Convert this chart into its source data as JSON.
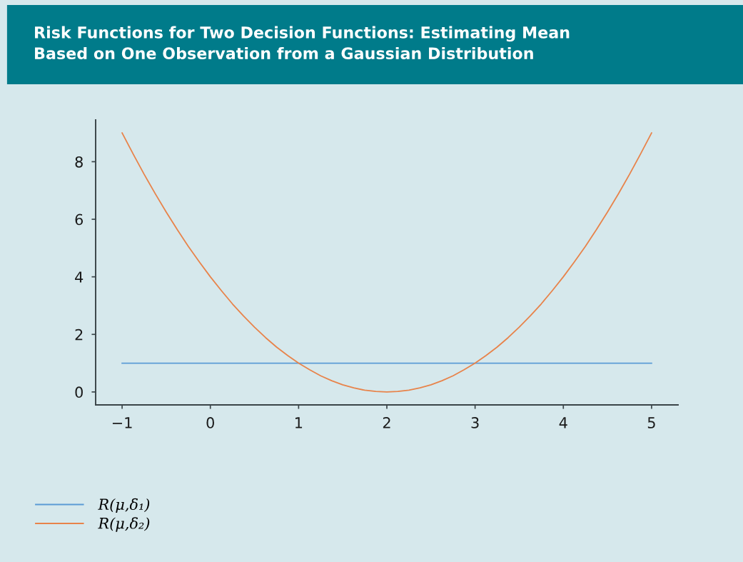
{
  "chart_data": {
    "type": "line",
    "title": "Risk Functions for Two Decision Functions: Estimating Mean\nBased on One Observation from a Gaussian Distribution",
    "series": [
      {
        "name": "R(μ,δ₁)",
        "color": "#5b9bd5",
        "x": [
          -1,
          5
        ],
        "values": [
          1,
          1
        ]
      },
      {
        "name": "R(μ,δ₂)",
        "color": "#e8834a",
        "x": [
          -1,
          -0.875,
          -0.75,
          -0.625,
          -0.5,
          -0.375,
          -0.25,
          -0.125,
          0,
          0.125,
          0.25,
          0.375,
          0.5,
          0.625,
          0.75,
          0.875,
          1,
          1.125,
          1.25,
          1.375,
          1.5,
          1.625,
          1.75,
          1.875,
          2,
          2.125,
          2.25,
          2.375,
          2.5,
          2.625,
          2.75,
          2.875,
          3,
          3.125,
          3.25,
          3.375,
          3.5,
          3.625,
          3.75,
          3.875,
          4,
          4.125,
          4.25,
          4.375,
          4.5,
          4.625,
          4.75,
          4.875,
          5
        ],
        "values": [
          9,
          8.27,
          7.56,
          6.89,
          6.25,
          5.64,
          5.06,
          4.52,
          4,
          3.52,
          3.06,
          2.64,
          2.25,
          1.89,
          1.56,
          1.27,
          1,
          0.77,
          0.56,
          0.39,
          0.25,
          0.14,
          0.06,
          0.02,
          0,
          0.02,
          0.06,
          0.14,
          0.25,
          0.39,
          0.56,
          0.77,
          1,
          1.27,
          1.56,
          1.89,
          2.25,
          2.64,
          3.06,
          3.52,
          4,
          4.52,
          5.06,
          5.64,
          6.25,
          6.89,
          7.56,
          8.27,
          9
        ]
      }
    ],
    "xlim": [
      -1.3,
      5.3
    ],
    "ylim": [
      -0.45,
      9.45
    ],
    "xticks": [
      {
        "value": -1,
        "label": "−1"
      },
      0,
      1,
      2,
      3,
      4,
      5
    ],
    "yticks": [
      0,
      2,
      4,
      6,
      8
    ],
    "legend": "bottom left",
    "line_style": "solid"
  }
}
